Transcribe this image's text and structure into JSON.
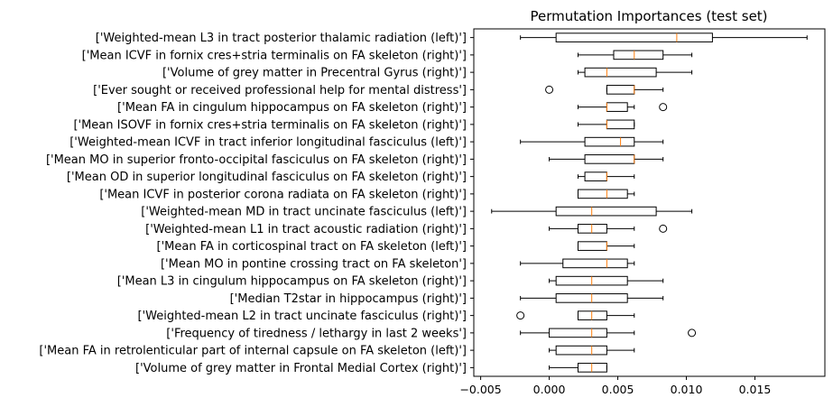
{
  "chart_data": {
    "type": "boxplot",
    "orientation": "horizontal",
    "title": "Permutation Importances (test set)",
    "xlabel": "",
    "ylabel": "",
    "xlim": [
      -0.0055,
      0.0201
    ],
    "x_ticks": [
      -0.005,
      0.0,
      0.005,
      0.01,
      0.015
    ],
    "x_tick_labels": [
      "−0.005",
      "0.000",
      "0.005",
      "0.010",
      "0.015"
    ],
    "grid": false,
    "legend": "none",
    "colors": {
      "box": "#000000",
      "median": "#ff7f0e",
      "background": "#ffffff"
    },
    "features": [
      {
        "label": "['Weighted-mean L3 in tract posterior thalamic radiation (left)']",
        "whislo": -0.0021,
        "q1": 0.0005,
        "med": 0.0093,
        "q3": 0.0119,
        "whishi": 0.0188,
        "fliers": []
      },
      {
        "label": "['Mean ICVF in fornix cres+stria terminalis on FA skeleton (right)']",
        "whislo": 0.0021,
        "q1": 0.0047,
        "med": 0.0062,
        "q3": 0.0083,
        "whishi": 0.0104,
        "fliers": []
      },
      {
        "label": "['Volume of grey matter in Precentral Gyrus (right)']",
        "whislo": 0.0021,
        "q1": 0.0026,
        "med": 0.0042,
        "q3": 0.0078,
        "whishi": 0.0104,
        "fliers": []
      },
      {
        "label": "['Ever sought or received professional help for mental distress']",
        "whislo": 0.0042,
        "q1": 0.0042,
        "med": 0.0062,
        "q3": 0.0062,
        "whishi": 0.0083,
        "fliers": [
          0.0
        ]
      },
      {
        "label": "['Mean FA in cingulum hippocampus on FA skeleton (right)']",
        "whislo": 0.0021,
        "q1": 0.0042,
        "med": 0.0042,
        "q3": 0.0057,
        "whishi": 0.0062,
        "fliers": [
          0.0083
        ]
      },
      {
        "label": "['Mean ISOVF in fornix cres+stria terminalis on FA skeleton (right)']",
        "whislo": 0.0021,
        "q1": 0.0042,
        "med": 0.0042,
        "q3": 0.0062,
        "whishi": 0.0062,
        "fliers": []
      },
      {
        "label": "['Weighted-mean ICVF in tract inferior longitudinal fasciculus (left)']",
        "whislo": -0.0021,
        "q1": 0.0026,
        "med": 0.0052,
        "q3": 0.0062,
        "whishi": 0.0083,
        "fliers": []
      },
      {
        "label": "['Mean MO in superior fronto-occipital fasciculus on FA skeleton (right)']",
        "whislo": 0.0,
        "q1": 0.0026,
        "med": 0.0062,
        "q3": 0.0062,
        "whishi": 0.0083,
        "fliers": []
      },
      {
        "label": "['Mean OD in superior longitudinal fasciculus on FA skeleton (right)']",
        "whislo": 0.0021,
        "q1": 0.0026,
        "med": 0.0042,
        "q3": 0.0042,
        "whishi": 0.0062,
        "fliers": []
      },
      {
        "label": "['Mean ICVF in posterior corona radiata on FA skeleton (right)']",
        "whislo": 0.0021,
        "q1": 0.0021,
        "med": 0.0042,
        "q3": 0.0057,
        "whishi": 0.0062,
        "fliers": []
      },
      {
        "label": "['Weighted-mean MD in tract uncinate fasciculus (left)']",
        "whislo": -0.0042,
        "q1": 0.0005,
        "med": 0.0031,
        "q3": 0.0078,
        "whishi": 0.0104,
        "fliers": []
      },
      {
        "label": "['Weighted-mean L1 in tract acoustic radiation (right)']",
        "whislo": 0.0,
        "q1": 0.0021,
        "med": 0.0031,
        "q3": 0.0042,
        "whishi": 0.0062,
        "fliers": [
          0.0083
        ]
      },
      {
        "label": "['Mean FA in corticospinal tract on FA skeleton (left)']",
        "whislo": 0.0021,
        "q1": 0.0021,
        "med": 0.0042,
        "q3": 0.0042,
        "whishi": 0.0062,
        "fliers": []
      },
      {
        "label": "['Mean MO in pontine crossing tract on FA skeleton']",
        "whislo": -0.0021,
        "q1": 0.001,
        "med": 0.0042,
        "q3": 0.0057,
        "whishi": 0.0062,
        "fliers": []
      },
      {
        "label": "['Mean L3 in cingulum hippocampus on FA skeleton (right)']",
        "whislo": 0.0,
        "q1": 0.0005,
        "med": 0.0031,
        "q3": 0.0057,
        "whishi": 0.0083,
        "fliers": []
      },
      {
        "label": "['Median T2star in hippocampus (right)']",
        "whislo": -0.0021,
        "q1": 0.0005,
        "med": 0.0031,
        "q3": 0.0057,
        "whishi": 0.0083,
        "fliers": []
      },
      {
        "label": "['Weighted-mean L2 in tract uncinate fasciculus (right)']",
        "whislo": 0.0021,
        "q1": 0.0021,
        "med": 0.0031,
        "q3": 0.0042,
        "whishi": 0.0062,
        "fliers": [
          -0.0021
        ]
      },
      {
        "label": "['Frequency of tiredness / lethargy in last 2 weeks']",
        "whislo": -0.0021,
        "q1": 0.0,
        "med": 0.0031,
        "q3": 0.0042,
        "whishi": 0.0062,
        "fliers": [
          0.0104
        ]
      },
      {
        "label": "['Mean FA in retrolenticular part of internal capsule on FA skeleton (left)']",
        "whislo": 0.0,
        "q1": 0.0005,
        "med": 0.0031,
        "q3": 0.0042,
        "whishi": 0.0062,
        "fliers": []
      },
      {
        "label": "['Volume of grey matter in Frontal Medial Cortex (right)']",
        "whislo": 0.0,
        "q1": 0.0021,
        "med": 0.0031,
        "q3": 0.0042,
        "whishi": 0.0042,
        "fliers": []
      }
    ]
  }
}
